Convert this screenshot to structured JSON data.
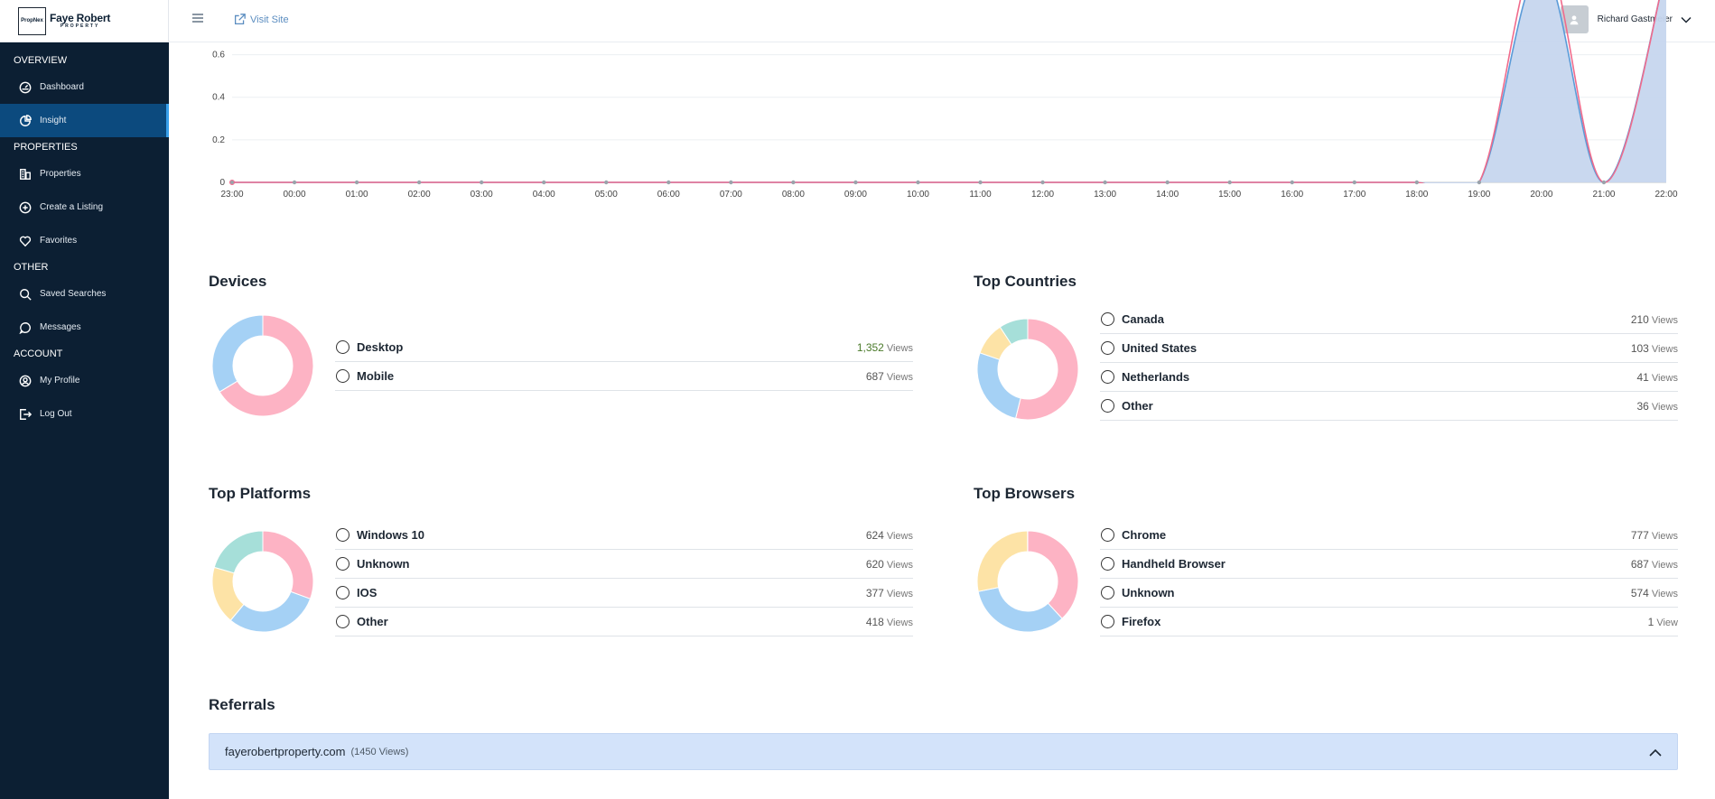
{
  "brand": {
    "logo_badge": "PropNex",
    "name": "Faye Robert",
    "tagline": "PROPERTY"
  },
  "sidebar": {
    "sections": [
      {
        "title": "OVERVIEW",
        "items": [
          {
            "label": "Dashboard",
            "icon": "dashboard-icon"
          },
          {
            "label": "Insight",
            "icon": "pie-chart-icon",
            "active": true
          }
        ]
      },
      {
        "title": "PROPERTIES",
        "items": [
          {
            "label": "Properties",
            "icon": "building-icon"
          },
          {
            "label": "Create a Listing",
            "icon": "plus-circle-icon"
          },
          {
            "label": "Favorites",
            "icon": "heart-icon"
          }
        ]
      },
      {
        "title": "OTHER",
        "items": [
          {
            "label": "Saved Searches",
            "icon": "search-icon"
          },
          {
            "label": "Messages",
            "icon": "message-icon"
          }
        ]
      },
      {
        "title": "ACCOUNT",
        "items": [
          {
            "label": "My Profile",
            "icon": "user-circle-icon"
          },
          {
            "label": "Log Out",
            "icon": "logout-icon"
          }
        ]
      }
    ]
  },
  "topbar": {
    "visit_site": "Visit Site",
    "user_name": "Richard Gastmeier"
  },
  "chart_data": {
    "type": "area",
    "x": [
      "23:00",
      "00:00",
      "01:00",
      "02:00",
      "03:00",
      "04:00",
      "05:00",
      "06:00",
      "07:00",
      "08:00",
      "09:00",
      "10:00",
      "11:00",
      "12:00",
      "13:00",
      "14:00",
      "15:00",
      "16:00",
      "17:00",
      "18:00",
      "19:00",
      "20:00",
      "21:00",
      "22:00"
    ],
    "y_ticks": [
      "0",
      "0.2",
      "0.4",
      "0.6"
    ],
    "series": [
      {
        "values": [
          0,
          0,
          0,
          0,
          0,
          0,
          0,
          0,
          0,
          0,
          0,
          0,
          0,
          0,
          0,
          0,
          0,
          0,
          0,
          0,
          0,
          1,
          0,
          1
        ],
        "color": "#5b9bd8",
        "fill": "#c6d6ee"
      },
      {
        "values": [
          0,
          0,
          0,
          0,
          0,
          0,
          0,
          0,
          0,
          0,
          0,
          0,
          0,
          0,
          0,
          0,
          0,
          0,
          0,
          0,
          0,
          1.1,
          0,
          1
        ],
        "color": "#f06b8c"
      }
    ],
    "ylim": [
      0,
      0.7
    ]
  },
  "devices": {
    "title": "Devices",
    "rows": [
      {
        "label": "Desktop",
        "value": "1,352",
        "unit": "Views",
        "color": "#fdb3c4"
      },
      {
        "label": "Mobile",
        "value": "687",
        "unit": "Views",
        "color": "#a5d1f5"
      }
    ],
    "shares": [
      1352,
      687
    ]
  },
  "countries": {
    "title": "Top Countries",
    "rows": [
      {
        "label": "Canada",
        "value": "210",
        "unit": "Views",
        "color": "#fdb3c4"
      },
      {
        "label": "United States",
        "value": "103",
        "unit": "Views",
        "color": "#a5d1f5"
      },
      {
        "label": "Netherlands",
        "value": "41",
        "unit": "Views",
        "color": "#fde3a6"
      },
      {
        "label": "Other",
        "value": "36",
        "unit": "Views",
        "color": "#a6dfd9"
      }
    ],
    "shares": [
      210,
      103,
      41,
      36
    ]
  },
  "platforms": {
    "title": "Top Platforms",
    "rows": [
      {
        "label": "Windows 10",
        "value": "624",
        "unit": "Views",
        "color": "#fdb3c4"
      },
      {
        "label": "Unknown",
        "value": "620",
        "unit": "Views",
        "color": "#a5d1f5"
      },
      {
        "label": "IOS",
        "value": "377",
        "unit": "Views",
        "color": "#fde3a6"
      },
      {
        "label": "Other",
        "value": "418",
        "unit": "Views",
        "color": "#a6dfd9"
      }
    ],
    "shares": [
      624,
      620,
      377,
      418
    ]
  },
  "browsers": {
    "title": "Top Browsers",
    "rows": [
      {
        "label": "Chrome",
        "value": "777",
        "unit": "Views",
        "color": "#fdb3c4"
      },
      {
        "label": "Handheld Browser",
        "value": "687",
        "unit": "Views",
        "color": "#a5d1f5"
      },
      {
        "label": "Unknown",
        "value": "574",
        "unit": "Views",
        "color": "#fde3a6"
      },
      {
        "label": "Firefox",
        "value": "1",
        "unit": "View",
        "color": "#a6dfd9"
      }
    ],
    "shares": [
      777,
      687,
      574,
      1
    ]
  },
  "referrals": {
    "title": "Referrals",
    "domain": "fayerobertproperty.com",
    "views": "(1450 Views)"
  }
}
